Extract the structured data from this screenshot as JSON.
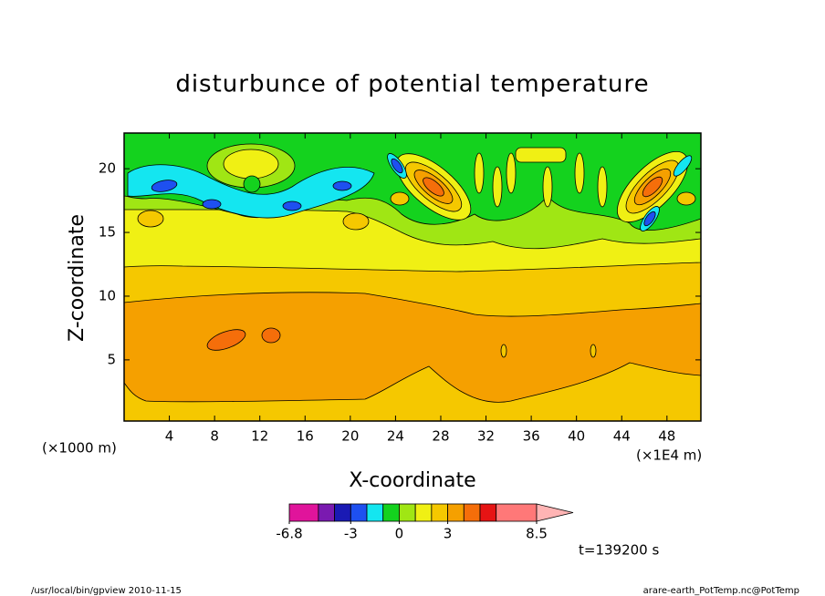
{
  "chart_data": {
    "type": "contour",
    "title": "disturbunce of potential temperature",
    "xlabel": "X-coordinate",
    "ylabel": "Z-coordinate",
    "x_unit": "(×1E4 m)",
    "y_unit": "(×1000 m)",
    "xlim": [
      0,
      51
    ],
    "ylim": [
      0.2,
      22.8
    ],
    "xticks": [
      4,
      8,
      12,
      16,
      20,
      24,
      28,
      32,
      36,
      40,
      44,
      48
    ],
    "yticks": [
      5,
      10,
      15,
      20
    ],
    "colorbar": {
      "levels": [
        -6.8,
        -5,
        -4,
        -3,
        -2,
        -1,
        0,
        1,
        2,
        3,
        4,
        5,
        6,
        8.5
      ],
      "colors": [
        "#e0149b",
        "#7a1ab0",
        "#1a1ab4",
        "#1e50f0",
        "#14e6f0",
        "#14d21e",
        "#a0e614",
        "#f0f014",
        "#f5c800",
        "#f5a000",
        "#f56e0a",
        "#e61414",
        "#ff7878",
        "#ffb4b4"
      ],
      "ticks": [
        -6.8,
        -3,
        0,
        3,
        8.5
      ]
    },
    "time_label": "t=139200 s",
    "footer_left": "/usr/local/bin/gpview  2010-11-15",
    "footer_right": "arare-earth_PotTemp.nc@PotTemp"
  }
}
